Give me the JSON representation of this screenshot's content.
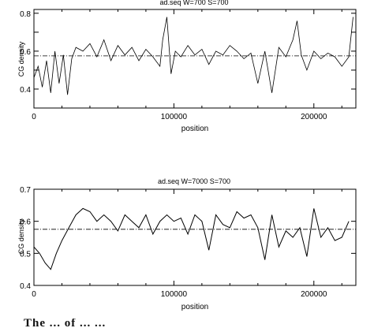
{
  "chart_data": [
    {
      "type": "line",
      "title": "ad.seq W=700 S=700",
      "xlabel": "position",
      "ylabel": "CG density",
      "xlim": [
        0,
        230000
      ],
      "ylim": [
        0.3,
        0.82
      ],
      "xticks": [
        0,
        100000,
        200000
      ],
      "xtick_labels": [
        "0",
        "100000",
        "200000"
      ],
      "yticks": [
        0.4,
        0.5,
        0.6,
        0.7,
        0.8
      ],
      "ytick_labels": [
        "0.4",
        "",
        "0.6",
        "",
        "0.8"
      ],
      "grid": false,
      "reference_line": {
        "y": 0.575,
        "style": "dash-dot"
      },
      "series": [
        {
          "x": [
            0,
            3000,
            6000,
            9000,
            12000,
            15000,
            18000,
            21000,
            24000,
            27000,
            30000,
            35000,
            40000,
            45000,
            50000,
            55000,
            60000,
            65000,
            70000,
            75000,
            80000,
            85000,
            90000,
            92000,
            95000,
            98000,
            101000,
            105000,
            110000,
            115000,
            120000,
            125000,
            130000,
            135000,
            140000,
            145000,
            150000,
            155000,
            160000,
            165000,
            170000,
            175000,
            180000,
            185000,
            188000,
            191000,
            195000,
            200000,
            205000,
            210000,
            215000,
            220000,
            225000,
            228000
          ],
          "values": [
            0.46,
            0.52,
            0.41,
            0.55,
            0.38,
            0.6,
            0.43,
            0.58,
            0.37,
            0.56,
            0.62,
            0.6,
            0.64,
            0.57,
            0.66,
            0.55,
            0.63,
            0.58,
            0.62,
            0.55,
            0.61,
            0.57,
            0.52,
            0.66,
            0.78,
            0.48,
            0.6,
            0.57,
            0.63,
            0.58,
            0.61,
            0.53,
            0.6,
            0.58,
            0.63,
            0.6,
            0.56,
            0.59,
            0.43,
            0.6,
            0.38,
            0.62,
            0.57,
            0.66,
            0.76,
            0.58,
            0.5,
            0.6,
            0.56,
            0.59,
            0.57,
            0.52,
            0.57,
            0.78
          ]
        }
      ]
    },
    {
      "type": "line",
      "title": "ad.seq W=7000 S=700",
      "xlabel": "position",
      "ylabel": "CG density",
      "xlim": [
        0,
        230000
      ],
      "ylim": [
        0.4,
        0.7
      ],
      "xticks": [
        0,
        100000,
        200000
      ],
      "xtick_labels": [
        "0",
        "100000",
        "200000"
      ],
      "yticks": [
        0.4,
        0.5,
        0.6,
        0.7
      ],
      "ytick_labels": [
        "0.4",
        "0.5",
        "0.6",
        "0.7"
      ],
      "grid": false,
      "reference_line": {
        "y": 0.575,
        "style": "dash-dot"
      },
      "series": [
        {
          "x": [
            0,
            4000,
            8000,
            12000,
            16000,
            20000,
            25000,
            30000,
            35000,
            40000,
            45000,
            50000,
            55000,
            60000,
            65000,
            70000,
            75000,
            80000,
            85000,
            90000,
            95000,
            100000,
            105000,
            110000,
            115000,
            120000,
            125000,
            130000,
            135000,
            140000,
            145000,
            150000,
            155000,
            160000,
            165000,
            170000,
            175000,
            180000,
            185000,
            190000,
            195000,
            200000,
            205000,
            210000,
            215000,
            220000,
            225000
          ],
          "values": [
            0.52,
            0.5,
            0.47,
            0.45,
            0.5,
            0.54,
            0.58,
            0.62,
            0.64,
            0.63,
            0.6,
            0.62,
            0.6,
            0.57,
            0.62,
            0.6,
            0.58,
            0.62,
            0.56,
            0.6,
            0.62,
            0.6,
            0.61,
            0.56,
            0.62,
            0.6,
            0.51,
            0.62,
            0.59,
            0.58,
            0.63,
            0.61,
            0.62,
            0.58,
            0.48,
            0.62,
            0.52,
            0.57,
            0.55,
            0.58,
            0.49,
            0.64,
            0.55,
            0.58,
            0.54,
            0.55,
            0.6
          ]
        }
      ]
    }
  ],
  "caption_fragment": "The ... of ... ..."
}
